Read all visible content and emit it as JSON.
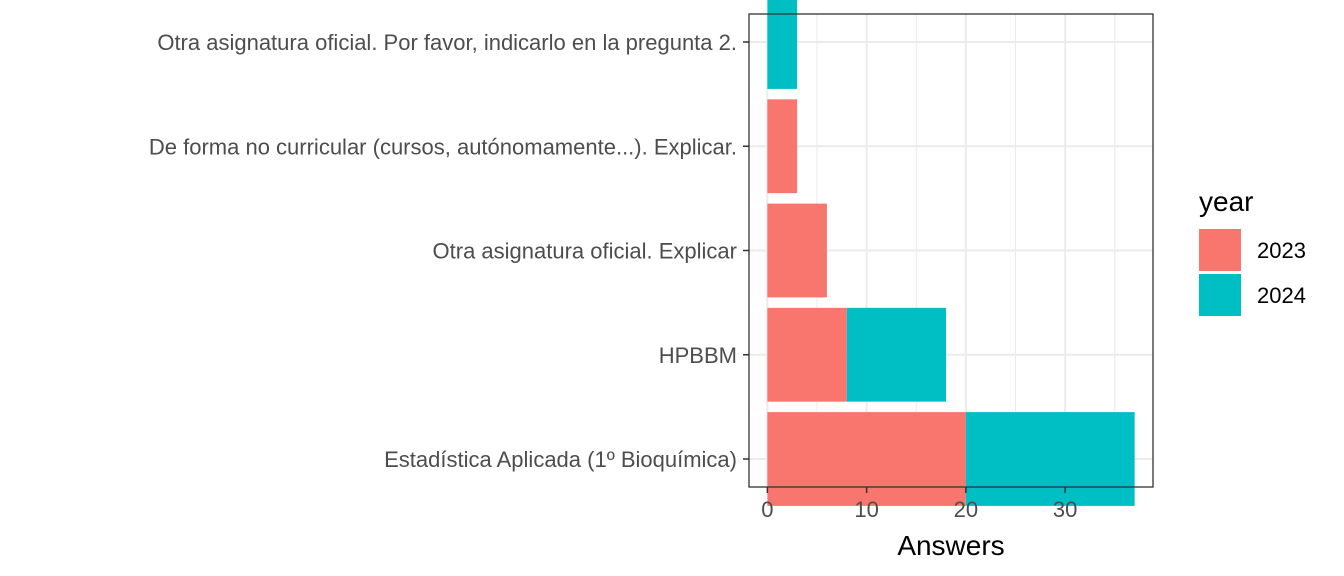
{
  "chart_data": {
    "type": "bar",
    "orientation": "horizontal",
    "stacked": true,
    "categories": [
      "Estadística Aplicada (1º Bioquímica)",
      "HPBBM",
      "Otra asignatura oficial. Explicar",
      "De forma no curricular (cursos, autónomamente...). Explicar.",
      "Otra asignatura oficial. Por favor, indicarlo en la pregunta 2."
    ],
    "series": [
      {
        "name": "2023",
        "color": "#F8766D",
        "values": [
          20,
          8,
          6,
          3,
          0
        ]
      },
      {
        "name": "2024",
        "color": "#00BFC4",
        "values": [
          17,
          10,
          0,
          0,
          3
        ]
      }
    ],
    "xlabel": "Answers",
    "ylabel": "",
    "xlim": [
      -1.85,
      38.85
    ],
    "x_ticks": [
      0,
      10,
      20,
      30
    ],
    "x_ticks_labels": [
      "0",
      "10",
      "20",
      "30"
    ],
    "grid": true,
    "legend": {
      "title": "year",
      "position": "right"
    }
  }
}
